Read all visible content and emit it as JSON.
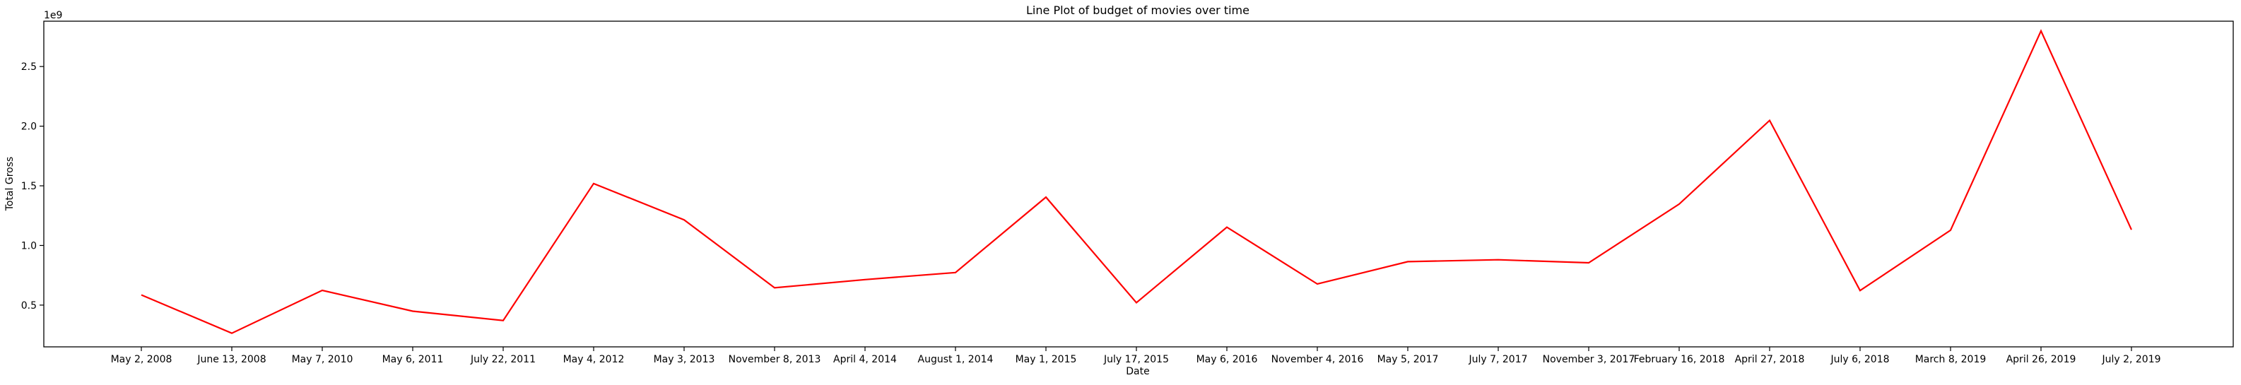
{
  "chart_data": {
    "type": "line",
    "title": "Line Plot of budget of movies over time",
    "xlabel": "Date",
    "ylabel": "Total Gross",
    "y_offset_text": "1e9",
    "y_scale": 1000000000,
    "ylim": [
      0.15,
      2.88
    ],
    "y_ticks": [
      0.5,
      1.0,
      1.5,
      2.0,
      2.5
    ],
    "y_tick_labels": [
      "0.5",
      "1.0",
      "1.5",
      "2.0",
      "2.5"
    ],
    "grid": false,
    "line_color": "#ff0000",
    "categories": [
      "May 2, 2008",
      "June 13, 2008",
      "May 7, 2010",
      "May 6, 2011",
      "July 22, 2011",
      "May 4, 2012",
      "May 3, 2013",
      "November 8, 2013",
      "April 4, 2014",
      "August 1, 2014",
      "May 1, 2015",
      "July 17, 2015",
      "May 6, 2016",
      "November 4, 2016",
      "May 5, 2017",
      "July 7, 2017",
      "November 3, 2017",
      "February 16, 2018",
      "April 27, 2018",
      "July 6, 2018",
      "March 8, 2019",
      "April 26, 2019",
      "July 2, 2019"
    ],
    "series": [
      {
        "values": [
          0.585,
          0.264,
          0.624,
          0.449,
          0.371,
          1.519,
          1.215,
          0.645,
          0.714,
          0.773,
          1.405,
          0.52,
          1.153,
          0.677,
          0.864,
          0.88,
          0.855,
          1.347,
          2.048,
          0.622,
          1.128,
          2.798,
          1.132
        ]
      }
    ]
  }
}
